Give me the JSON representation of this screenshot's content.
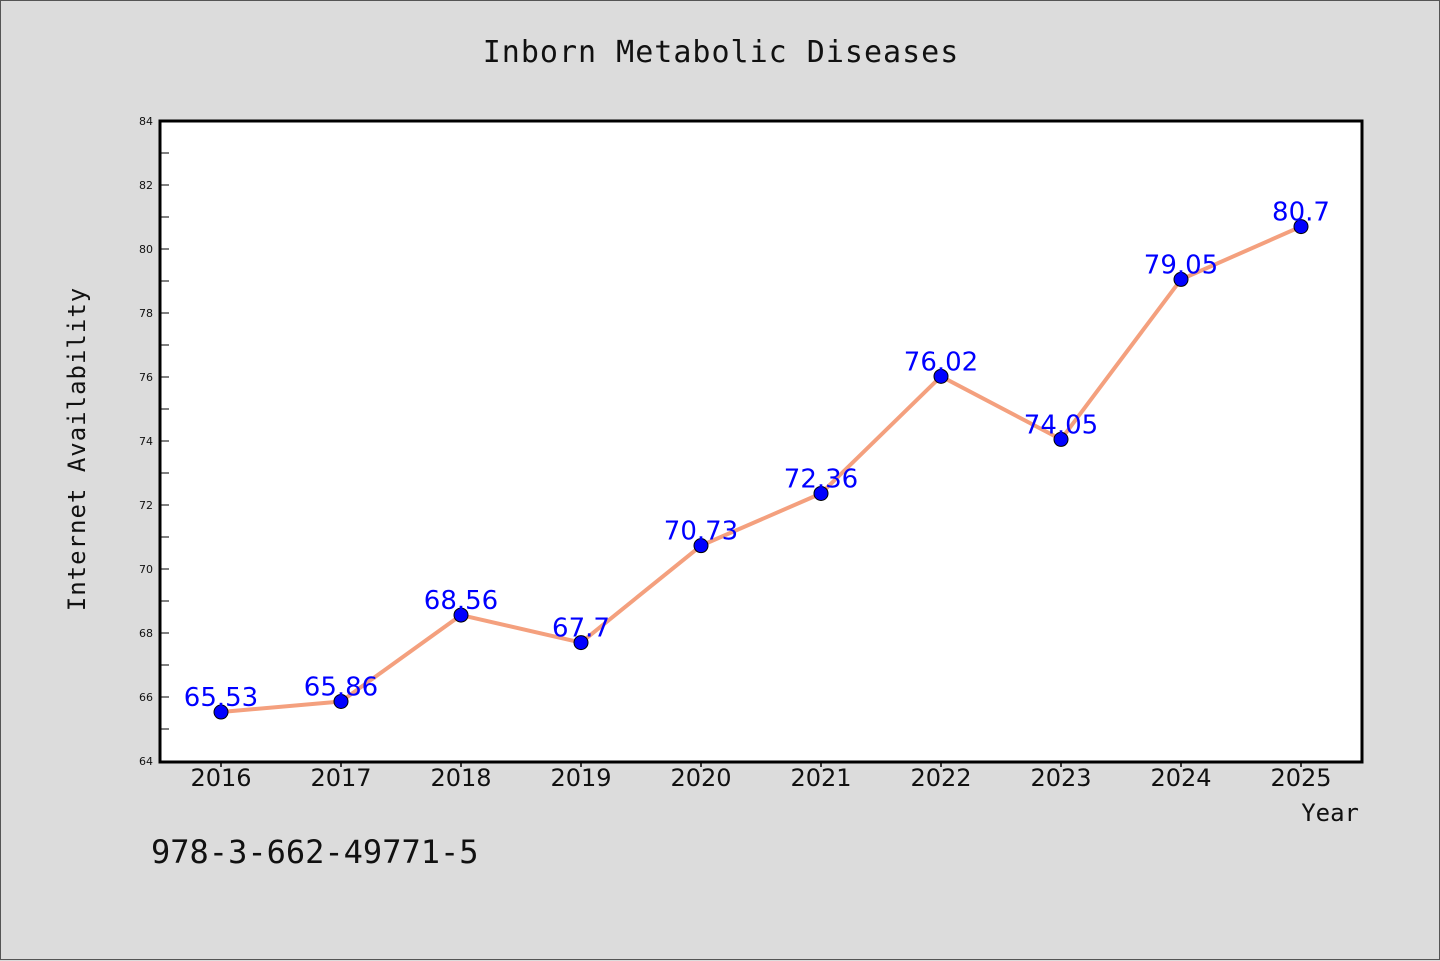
{
  "chart_data": {
    "type": "line",
    "title": "Inborn Metabolic Diseases",
    "xlabel": "Year",
    "ylabel": "Internet Availability",
    "categories": [
      "2016",
      "2017",
      "2018",
      "2019",
      "2020",
      "2021",
      "2022",
      "2023",
      "2024",
      "2025"
    ],
    "values": [
      65.53,
      65.86,
      68.56,
      67.7,
      70.73,
      72.36,
      76.02,
      74.05,
      79.05,
      80.7
    ],
    "data_labels": [
      "65.53",
      "65.86",
      "68.56",
      "67.7",
      "70.73",
      "72.36",
      "76.02",
      "74.05",
      "79.05",
      "80.7"
    ],
    "ylim": [
      64,
      84
    ],
    "yticks": [
      "64",
      "66",
      "68",
      "70",
      "72",
      "74",
      "76",
      "78",
      "80",
      "82",
      "84"
    ],
    "grid": false,
    "legend": "none",
    "line_color": "#f4a07e",
    "marker_color": "#0000ff",
    "label_color": "#0000ff"
  },
  "footer": {
    "isbn": "978-3-662-49771-5"
  }
}
